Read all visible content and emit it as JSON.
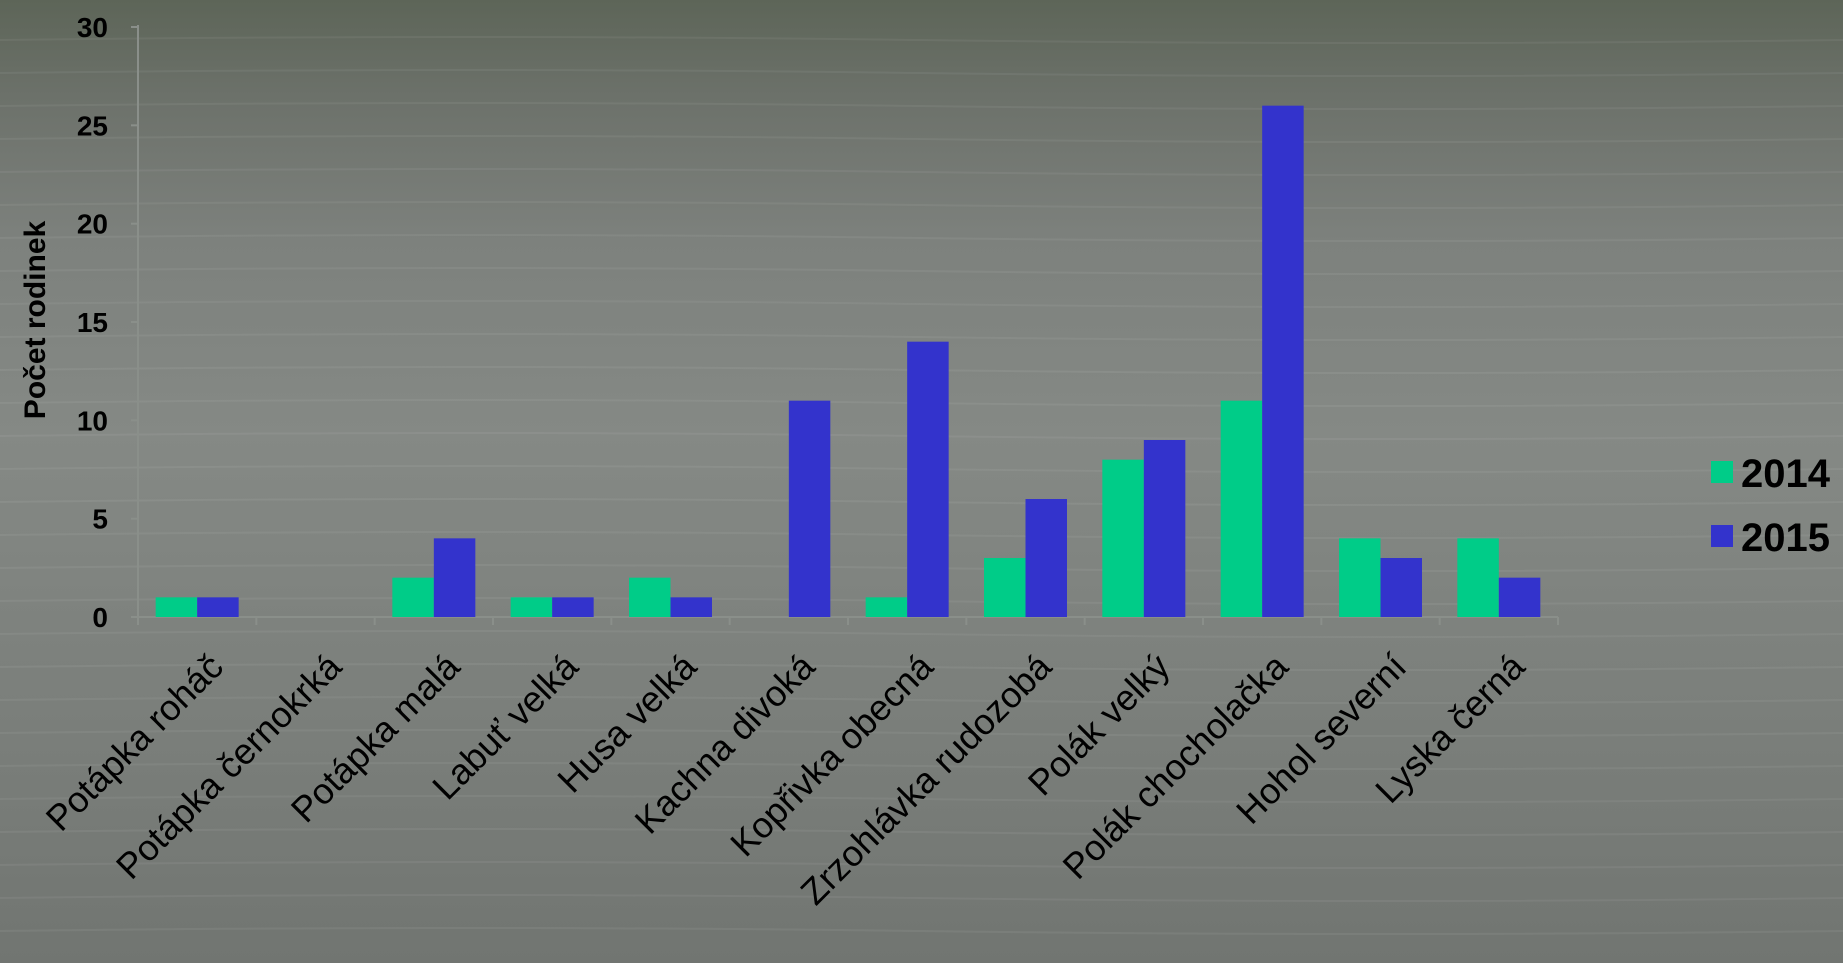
{
  "chart_data": {
    "type": "bar",
    "ylabel": "Počet rodinek",
    "xlabel": "",
    "ylim": [
      0,
      30
    ],
    "yticks": [
      0,
      5,
      10,
      15,
      20,
      25,
      30
    ],
    "grid": false,
    "legend_position": "right",
    "categories": [
      "Potápka roháč",
      "Potápka černokrká",
      "Potápka malá",
      "Labuť velká",
      "Husa velká",
      "Kachna divoká",
      "Kopřivka obecná",
      "Zrzohlávka rudozobá",
      "Polák velký",
      "Polák chocholačka",
      "Hohol severní",
      "Lyska černá"
    ],
    "series": [
      {
        "name": "2014",
        "color": "#00cc88",
        "values": [
          1,
          0,
          2,
          1,
          2,
          0,
          1,
          3,
          8,
          11,
          4,
          4
        ]
      },
      {
        "name": "2015",
        "color": "#3333cc",
        "values": [
          1,
          0,
          4,
          1,
          1,
          11,
          14,
          6,
          9,
          26,
          3,
          2
        ]
      }
    ]
  }
}
